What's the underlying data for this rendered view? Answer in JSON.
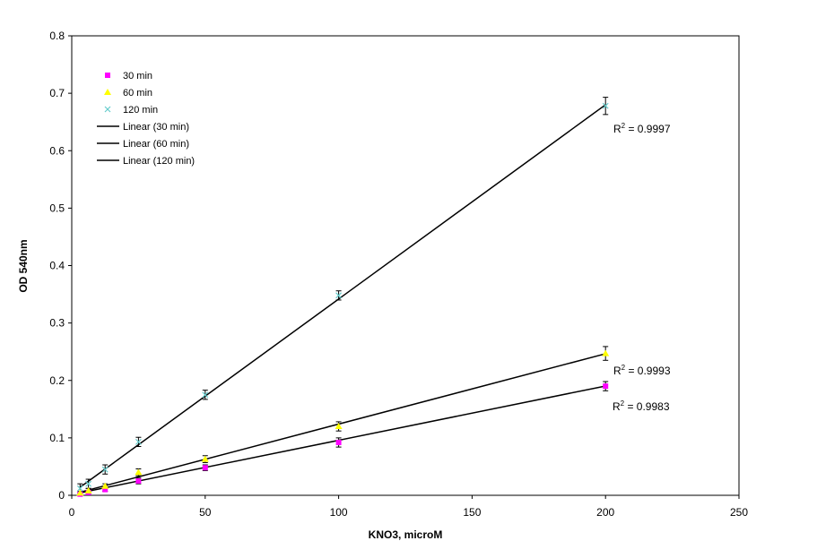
{
  "chart_data": {
    "type": "scatter",
    "title": "",
    "xlabel": "KNO3, microM",
    "ylabel": "OD 540nm",
    "xlim": [
      0,
      250
    ],
    "ylim": [
      0,
      0.8
    ],
    "xticks": [
      "0",
      "50",
      "100",
      "150",
      "200",
      "250"
    ],
    "yticks": [
      "0",
      "0.1",
      "0.2",
      "0.3",
      "0.4",
      "0.5",
      "0.6",
      "0.7",
      "0.8"
    ],
    "x": [
      3.125,
      6.25,
      12.5,
      25,
      50,
      100,
      200
    ],
    "grid": false,
    "legend_position": "top-left",
    "series": [
      {
        "name": "30 min",
        "marker": "square",
        "color": "#ff00ff",
        "values": [
          0.002,
          0.005,
          0.01,
          0.025,
          0.048,
          0.092,
          0.19
        ],
        "errors": [
          0.003,
          0.003,
          0.003,
          0.005,
          0.005,
          0.008,
          0.008
        ],
        "trend": {
          "name": "Linear (30 min)",
          "slope": 0.000945,
          "intercept": 0.0013,
          "r2": "R² = 0.9983"
        }
      },
      {
        "name": "60 min",
        "marker": "triangle",
        "color": "#ffff00",
        "values": [
          0.004,
          0.008,
          0.016,
          0.04,
          0.063,
          0.12,
          0.247
        ],
        "errors": [
          0.003,
          0.004,
          0.004,
          0.006,
          0.006,
          0.008,
          0.012
        ],
        "trend": {
          "name": "Linear (60 min)",
          "slope": 0.001225,
          "intercept": 0.0015,
          "r2": "R² = 0.9993"
        }
      },
      {
        "name": "120 min",
        "marker": "x",
        "color": "#66cccc",
        "values": [
          0.012,
          0.02,
          0.045,
          0.093,
          0.175,
          0.348,
          0.678
        ],
        "errors": [
          0.008,
          0.008,
          0.008,
          0.008,
          0.008,
          0.008,
          0.015
        ],
        "trend": {
          "name": "Linear (120 min)",
          "slope": 0.0033825,
          "intercept": 0.0035,
          "r2": "R² = 0.9997"
        }
      }
    ]
  }
}
